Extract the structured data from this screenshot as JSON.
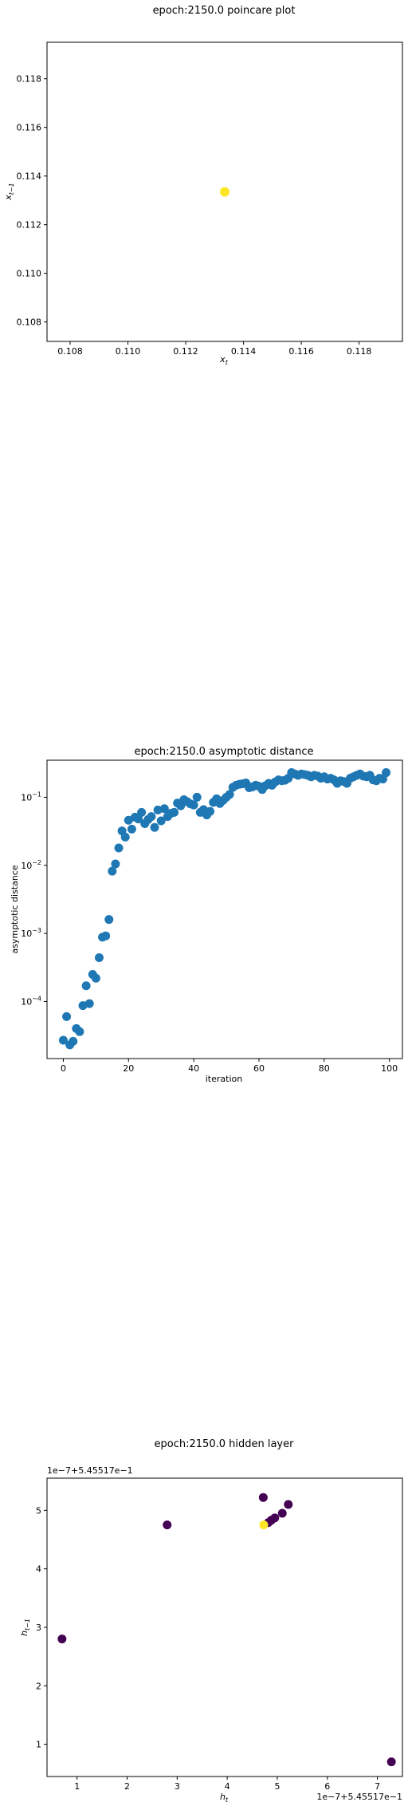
{
  "chart_data": [
    {
      "type": "scatter",
      "title": "epoch:2150.0 poincare plot",
      "xlabel": "x_t",
      "ylabel": "x_{t-1}",
      "xlim": [
        0.1072,
        0.1195
      ],
      "ylim": [
        0.1072,
        0.1195
      ],
      "xticks": [
        "0.108",
        "0.110",
        "0.112",
        "0.114",
        "0.116",
        "0.118"
      ],
      "yticks": [
        "0.108",
        "0.110",
        "0.112",
        "0.114",
        "0.116",
        "0.118"
      ],
      "grid": false,
      "points": [
        {
          "x": 0.11335,
          "y": 0.11335,
          "color": "#fde725"
        }
      ]
    },
    {
      "type": "scatter",
      "title": "epoch:2150.0 asymptotic distance",
      "xlabel": "iteration",
      "ylabel": "asymptotic distance",
      "xscale": "linear",
      "yscale": "log",
      "xlim": [
        -5,
        104
      ],
      "ylim": [
        1.45e-05,
        0.35
      ],
      "xticks": [
        "0",
        "20",
        "40",
        "60",
        "80",
        "100"
      ],
      "yticks": [
        "10^-4",
        "10^-3",
        "10^-2",
        "10^-1"
      ],
      "grid": false,
      "color": "#1f77b4",
      "x": [
        0,
        1,
        2,
        3,
        4,
        5,
        6,
        7,
        8,
        9,
        10,
        11,
        12,
        13,
        14,
        15,
        16,
        17,
        18,
        19,
        20,
        21,
        22,
        23,
        24,
        25,
        26,
        27,
        28,
        29,
        30,
        31,
        32,
        33,
        34,
        35,
        36,
        37,
        38,
        39,
        40,
        41,
        42,
        43,
        44,
        45,
        46,
        47,
        48,
        49,
        50,
        51,
        52,
        53,
        54,
        55,
        56,
        57,
        58,
        59,
        60,
        61,
        62,
        63,
        64,
        65,
        66,
        67,
        68,
        69,
        70,
        71,
        72,
        73,
        74,
        75,
        76,
        77,
        78,
        79,
        80,
        81,
        82,
        83,
        84,
        85,
        86,
        87,
        88,
        89,
        90,
        91,
        92,
        93,
        94,
        95,
        96,
        97,
        98,
        99
      ],
      "y": [
        2.7e-05,
        6e-05,
        2.3e-05,
        2.6e-05,
        4e-05,
        3.6e-05,
        8.7e-05,
        0.00017,
        9.3e-05,
        0.00025,
        0.00022,
        0.00044,
        0.00088,
        0.00092,
        0.0016,
        0.0082,
        0.0105,
        0.018,
        0.032,
        0.026,
        0.046,
        0.034,
        0.051,
        0.048,
        0.06,
        0.041,
        0.047,
        0.052,
        0.036,
        0.065,
        0.045,
        0.068,
        0.052,
        0.058,
        0.06,
        0.082,
        0.075,
        0.092,
        0.086,
        0.08,
        0.077,
        0.1,
        0.06,
        0.066,
        0.055,
        0.062,
        0.084,
        0.095,
        0.081,
        0.09,
        0.1,
        0.11,
        0.14,
        0.15,
        0.155,
        0.158,
        0.162,
        0.138,
        0.142,
        0.15,
        0.145,
        0.13,
        0.148,
        0.16,
        0.15,
        0.168,
        0.18,
        0.175,
        0.178,
        0.19,
        0.23,
        0.22,
        0.21,
        0.22,
        0.215,
        0.21,
        0.2,
        0.21,
        0.205,
        0.19,
        0.2,
        0.185,
        0.19,
        0.18,
        0.16,
        0.175,
        0.17,
        0.16,
        0.19,
        0.2,
        0.21,
        0.22,
        0.205,
        0.2,
        0.21,
        0.18,
        0.175,
        0.19,
        0.185,
        0.23
      ]
    },
    {
      "type": "scatter",
      "title": "epoch:2150.0 hidden layer",
      "xlabel": "h_t",
      "ylabel": "h_{t-1}",
      "x_offset_label": "1e−7+5.45517e−1",
      "y_offset_label": "1e−7+5.45517e−1",
      "xlim": [
        0.4,
        7.5
      ],
      "ylim": [
        0.45,
        5.55
      ],
      "xticks": [
        "1",
        "2",
        "3",
        "4",
        "5",
        "6",
        "7"
      ],
      "yticks": [
        "1",
        "2",
        "3",
        "4",
        "5"
      ],
      "grid": false,
      "points": [
        {
          "x": 0.7,
          "y": 2.8,
          "color": "#440154"
        },
        {
          "x": 2.8,
          "y": 4.75,
          "color": "#440154"
        },
        {
          "x": 4.72,
          "y": 5.22,
          "color": "#440154"
        },
        {
          "x": 5.22,
          "y": 5.1,
          "color": "#440154"
        },
        {
          "x": 5.1,
          "y": 4.95,
          "color": "#440154"
        },
        {
          "x": 4.95,
          "y": 4.87,
          "color": "#440154"
        },
        {
          "x": 4.88,
          "y": 4.83,
          "color": "#440154"
        },
        {
          "x": 4.82,
          "y": 4.79,
          "color": "#440154"
        },
        {
          "x": 7.28,
          "y": 0.7,
          "color": "#440154"
        },
        {
          "x": 4.73,
          "y": 4.75,
          "color": "#fde725"
        }
      ]
    }
  ]
}
